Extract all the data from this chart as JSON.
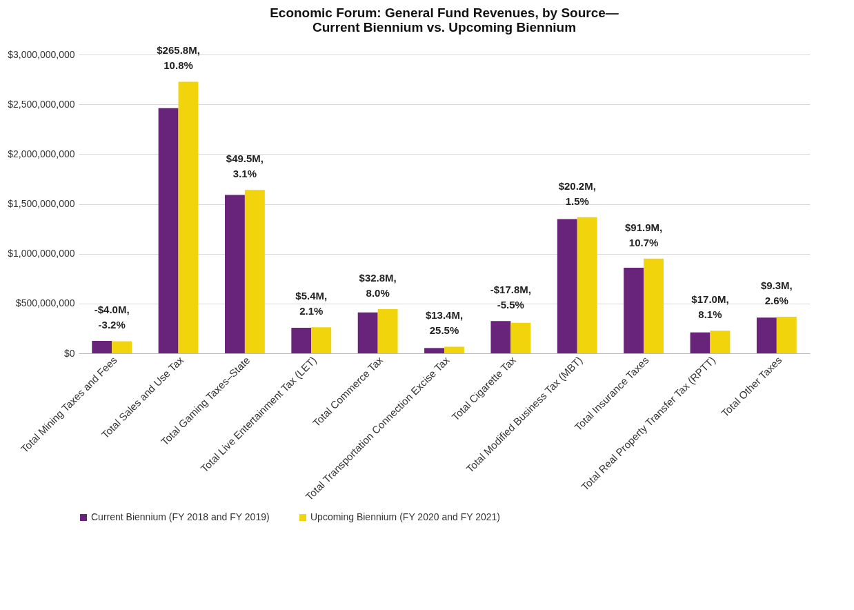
{
  "chart_data": {
    "type": "bar",
    "title": "Economic Forum: General Fund Revenues, by Source—\nCurrent Biennium vs. Upcoming Biennium",
    "categories": [
      "Total Mining Taxes and Fees",
      "Total Sales and Use Tax",
      "Total Gaming Taxes–State",
      "Total Live Entertainment Tax (LET)",
      "Total Commerce Tax",
      "Total Transportation Connection Excise Tax",
      "Total Cigarette Tax",
      "Total Modified Business Tax (MBT)",
      "Total Insurance Taxes",
      "Total Real Property Transfer Tax (RPTT)",
      "Total Other Taxes"
    ],
    "series": [
      {
        "name": "Current Biennium (FY 2018 and FY 2019)",
        "color": "#68237a",
        "values": [
          125000000,
          2461000000,
          1590000000,
          257000000,
          410000000,
          53000000,
          324000000,
          1347000000,
          859000000,
          210000000,
          358000000
        ]
      },
      {
        "name": "Upcoming Biennium (FY 2020 and FY 2021)",
        "color": "#f2d40c",
        "values": [
          121000000,
          2727000000,
          1640000000,
          262000000,
          443000000,
          66000000,
          306000000,
          1367000000,
          951000000,
          227000000,
          367000000
        ]
      }
    ],
    "ylim": [
      0,
      3000000000
    ],
    "yticks": [
      {
        "value": 0,
        "label": "$0"
      },
      {
        "value": 500000000,
        "label": "$500,000,000"
      },
      {
        "value": 1000000000,
        "label": "$1,000,000,000"
      },
      {
        "value": 1500000000,
        "label": "$1,500,000,000"
      },
      {
        "value": 2000000000,
        "label": "$2,000,000,000"
      },
      {
        "value": 2500000000,
        "label": "$2,500,000,000"
      },
      {
        "value": 3000000000,
        "label": "$3,000,000,000"
      }
    ],
    "annotations": [
      "-$4.0M,\n-3.2%",
      "$265.8M,\n10.8%",
      "$49.5M,\n3.1%",
      "$5.4M,\n2.1%",
      "$32.8M,\n8.0%",
      "$13.4M,\n25.5%",
      "-$17.8M,\n-5.5%",
      "$20.2M,\n1.5%",
      "$91.9M,\n10.7%",
      "$17.0M,\n8.1%",
      "$9.3M,\n2.6%"
    ],
    "grid": "y",
    "legend": "bottom"
  }
}
